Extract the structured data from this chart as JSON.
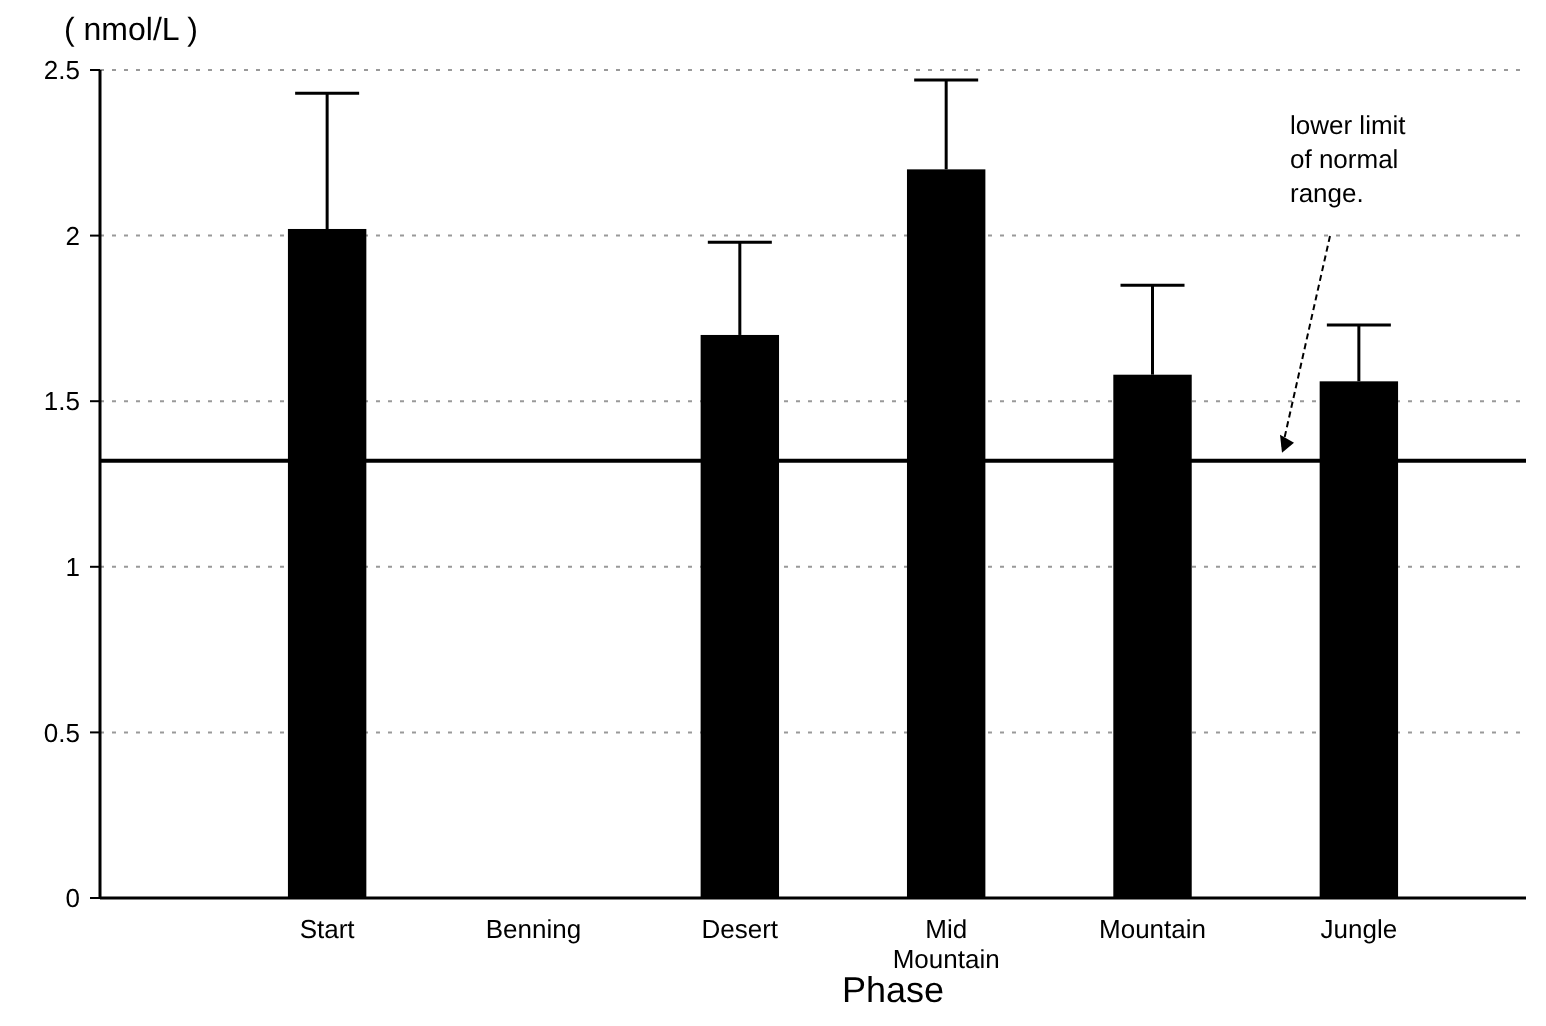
{
  "chart_data": {
    "type": "bar",
    "ylabel": "( nmol/L )",
    "xlabel": "Phase",
    "categories": [
      "Start",
      "Benning",
      "Desert",
      "Mid Mountain",
      "Mountain",
      "Jungle"
    ],
    "values": [
      2.02,
      null,
      1.7,
      2.2,
      1.58,
      1.56
    ],
    "errors": [
      [
        2.02,
        2.43
      ],
      null,
      [
        1.7,
        1.98
      ],
      [
        2.2,
        2.47
      ],
      [
        1.58,
        1.85
      ],
      [
        1.56,
        1.73
      ]
    ],
    "color": "#000000",
    "ylim": [
      0,
      2.5
    ],
    "yticks": [
      0,
      0.5,
      1,
      1.5,
      2,
      2.5
    ],
    "grid": "y",
    "ref_lines": [
      {
        "axis": "y",
        "value": 1.32,
        "label": "lower limit of normal range.",
        "color": "#000000"
      }
    ]
  }
}
